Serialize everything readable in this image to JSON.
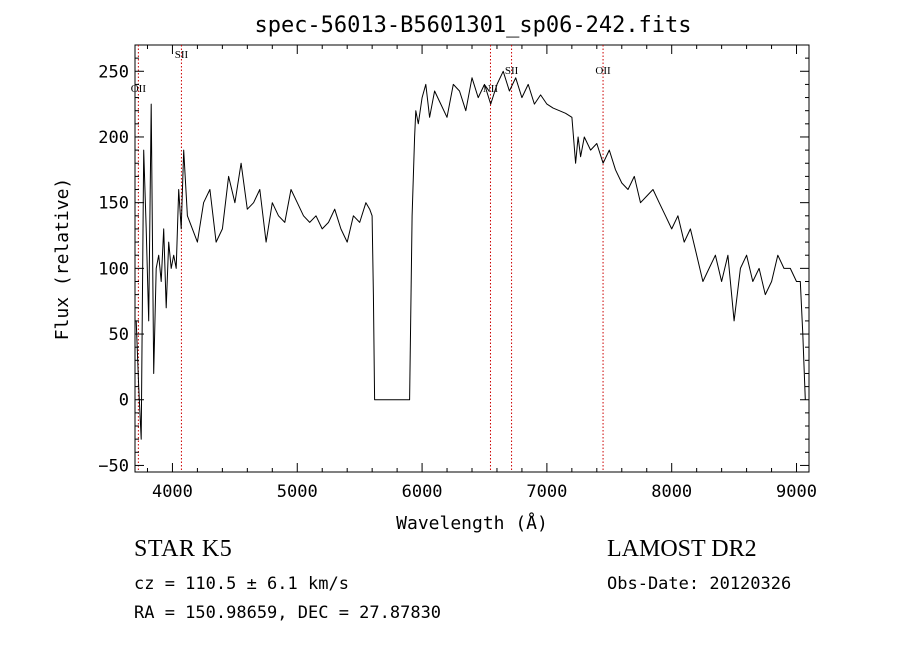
{
  "chart_data": {
    "type": "line",
    "title": "spec-56013-B5601301_sp06-242.fits",
    "xlabel": "Wavelength (Å)",
    "ylabel": "Flux (relative)",
    "xlim": [
      3700,
      9100
    ],
    "ylim": [
      -55,
      270
    ],
    "x_ticks": [
      4000,
      5000,
      6000,
      7000,
      8000,
      9000
    ],
    "y_ticks": [
      -50,
      0,
      50,
      100,
      150,
      200,
      250
    ],
    "line_color": "#000000",
    "marker_color": "#cc0000",
    "series": [
      {
        "x": [
          3710,
          3730,
          3750,
          3770,
          3790,
          3810,
          3830,
          3850,
          3870,
          3890,
          3910,
          3930,
          3950,
          3970,
          3990,
          4010,
          4030,
          4050,
          4070,
          4090,
          4120,
          4160,
          4200,
          4250,
          4300,
          4350,
          4400,
          4450,
          4500,
          4550,
          4600,
          4650,
          4700,
          4750,
          4800,
          4850,
          4900,
          4950,
          5000,
          5050,
          5100,
          5150,
          5200,
          5250,
          5300,
          5350,
          5400,
          5450,
          5500,
          5550,
          5580,
          5600,
          5610,
          5620,
          5650,
          5700,
          5800,
          5900,
          5920,
          5940,
          5950,
          5970,
          6000,
          6030,
          6060,
          6100,
          6150,
          6200,
          6250,
          6300,
          6350,
          6400,
          6450,
          6500,
          6550,
          6600,
          6650,
          6700,
          6750,
          6800,
          6850,
          6900,
          6950,
          7000,
          7050,
          7100,
          7150,
          7200,
          7230,
          7250,
          7270,
          7300,
          7350,
          7400,
          7450,
          7500,
          7550,
          7600,
          7650,
          7700,
          7750,
          7800,
          7850,
          7900,
          7950,
          8000,
          8050,
          8100,
          8150,
          8200,
          8250,
          8300,
          8350,
          8400,
          8450,
          8500,
          8550,
          8600,
          8650,
          8700,
          8750,
          8800,
          8850,
          8900,
          8950,
          9000,
          9030,
          9050,
          9070
        ],
        "y": [
          60,
          10,
          -30,
          190,
          130,
          60,
          225,
          20,
          100,
          110,
          90,
          130,
          70,
          120,
          100,
          110,
          100,
          160,
          130,
          190,
          140,
          130,
          120,
          150,
          160,
          120,
          130,
          170,
          150,
          180,
          145,
          150,
          160,
          120,
          150,
          140,
          135,
          160,
          150,
          140,
          135,
          140,
          130,
          135,
          145,
          130,
          120,
          140,
          135,
          150,
          145,
          140,
          80,
          0,
          0,
          0,
          0,
          0,
          140,
          200,
          220,
          210,
          230,
          240,
          215,
          235,
          225,
          215,
          240,
          235,
          220,
          245,
          230,
          240,
          225,
          240,
          250,
          235,
          245,
          230,
          240,
          225,
          232,
          225,
          222,
          220,
          218,
          215,
          180,
          200,
          185,
          200,
          190,
          195,
          180,
          190,
          175,
          165,
          160,
          170,
          150,
          155,
          160,
          150,
          140,
          130,
          140,
          120,
          130,
          110,
          90,
          100,
          110,
          90,
          110,
          60,
          100,
          110,
          90,
          100,
          80,
          90,
          110,
          100,
          100,
          90,
          90,
          50,
          0
        ]
      }
    ],
    "line_markers": [
      {
        "label": "OII",
        "wavelength": 3727
      },
      {
        "label": "SII",
        "wavelength": 4072
      },
      {
        "label": "NII",
        "wavelength": 6548
      },
      {
        "label": "SII",
        "wavelength": 6717
      },
      {
        "label": "OII",
        "wavelength": 7450
      }
    ]
  },
  "footer": {
    "class_text": "STAR    K5",
    "survey": "LAMOST DR2",
    "cz": "cz = 110.5 ± 6.1 km/s",
    "obs_date": "Obs-Date: 20120326",
    "radec": "RA = 150.98659, DEC =  27.87830"
  }
}
